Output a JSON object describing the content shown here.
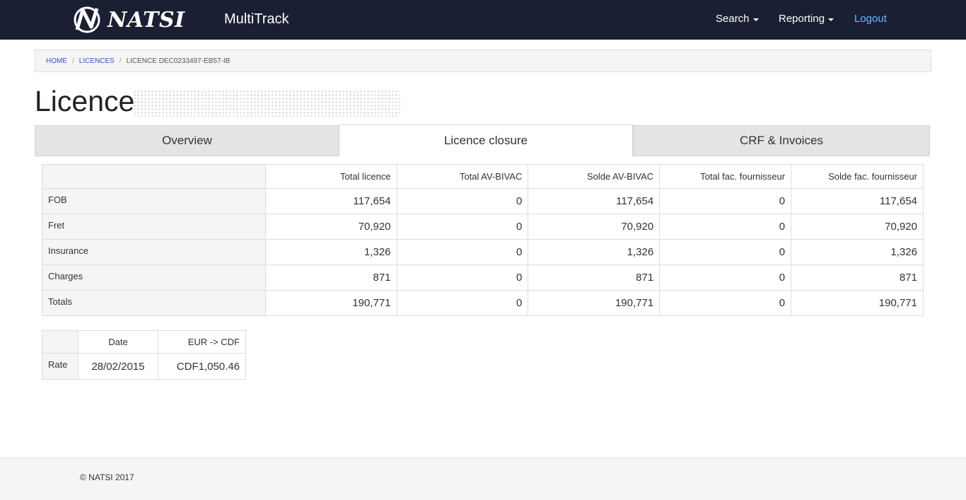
{
  "navbar": {
    "logo_text": "NATSI",
    "app_title": "MultiTrack",
    "search_label": "Search",
    "reporting_label": "Reporting",
    "logout_label": "Logout"
  },
  "breadcrumb": {
    "home": "HOME",
    "licences": "LICENCES",
    "current": "LICENCE DEC0233497-EB57-IB"
  },
  "page": {
    "title": "Licence"
  },
  "tabs": [
    {
      "label": "Overview",
      "active": false
    },
    {
      "label": "Licence closure",
      "active": true
    },
    {
      "label": "CRF & Invoices",
      "active": false
    }
  ],
  "closure_table": {
    "headers": [
      "Total licence",
      "Total AV-BIVAC",
      "Solde AV-BIVAC",
      "Total fac. fournisseur",
      "Solde fac. fournisseur"
    ],
    "rows": [
      {
        "label": "FOB",
        "values": [
          "117,654",
          "0",
          "117,654",
          "0",
          "117,654"
        ]
      },
      {
        "label": "Fret",
        "values": [
          "70,920",
          "0",
          "70,920",
          "0",
          "70,920"
        ]
      },
      {
        "label": "Insurance",
        "values": [
          "1,326",
          "0",
          "1,326",
          "0",
          "1,326"
        ]
      },
      {
        "label": "Charges",
        "values": [
          "871",
          "0",
          "871",
          "0",
          "871"
        ]
      },
      {
        "label": "Totals",
        "values": [
          "190,771",
          "0",
          "190,771",
          "0",
          "190,771"
        ]
      }
    ]
  },
  "rate_table": {
    "headers": [
      "Date",
      "EUR -> CDF"
    ],
    "row_label": "Rate",
    "date": "28/02/2015",
    "value": "CDF1,050.46"
  },
  "footer": {
    "text": "© NATSI 2017"
  },
  "colors": {
    "navbar_bg": "#1b1f33",
    "link": "#3a4ec2",
    "logout": "#5bc0ff"
  }
}
